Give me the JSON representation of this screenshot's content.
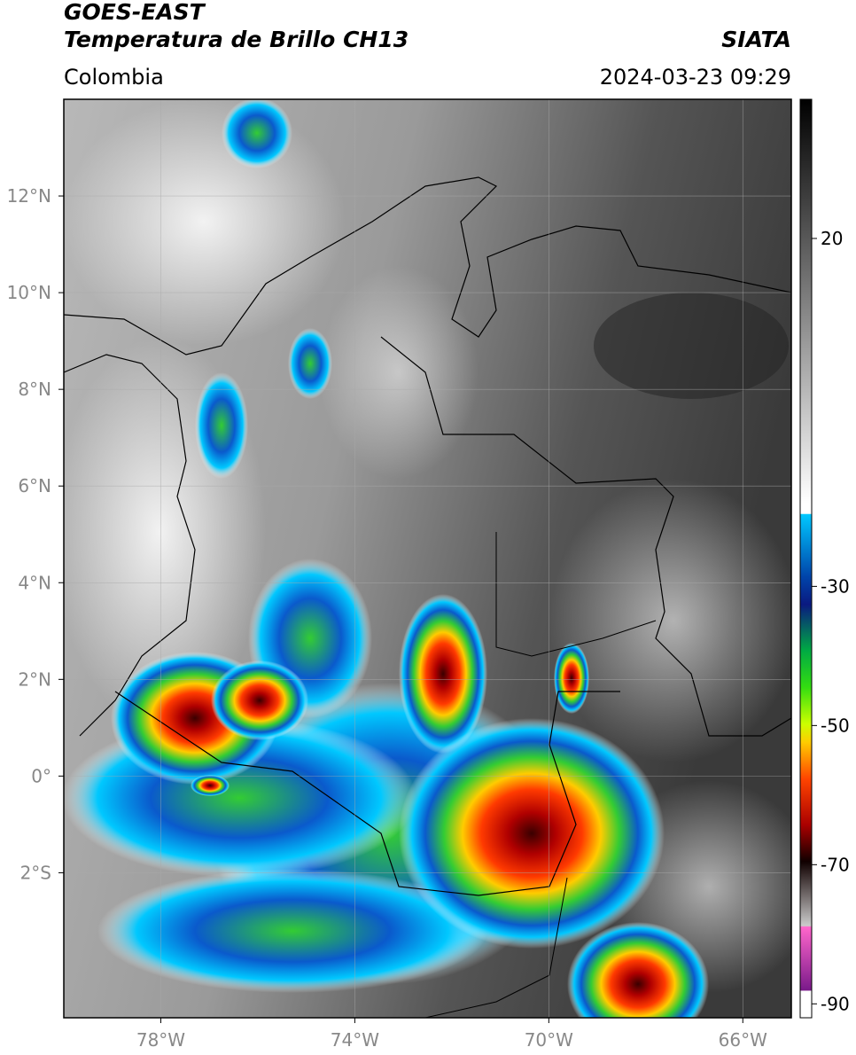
{
  "header": {
    "title": "GOES-EAST",
    "subtitle": "Temperatura de Brillo CH13",
    "source": "SIATA",
    "region": "Colombia",
    "timestamp": "2024-03-23 09:29"
  },
  "map": {
    "lon_range": [
      -80,
      -65
    ],
    "lat_range": [
      -5,
      14
    ],
    "lon_ticks": [
      {
        "value": -78,
        "label": "78°W"
      },
      {
        "value": -74,
        "label": "74°W"
      },
      {
        "value": -70,
        "label": "70°W"
      },
      {
        "value": -66,
        "label": "66°W"
      }
    ],
    "lat_ticks": [
      {
        "value": 12,
        "label": "12°N"
      },
      {
        "value": 10,
        "label": "10°N"
      },
      {
        "value": 8,
        "label": "8°N"
      },
      {
        "value": 6,
        "label": "6°N"
      },
      {
        "value": 4,
        "label": "4°N"
      },
      {
        "value": 2,
        "label": "2°N"
      },
      {
        "value": 0,
        "label": "0°"
      },
      {
        "value": -2,
        "label": "2°S"
      }
    ]
  },
  "colorbar": {
    "range": [
      -92,
      40
    ],
    "ticks": [
      20,
      -30,
      -50,
      -70,
      -90
    ]
  }
}
